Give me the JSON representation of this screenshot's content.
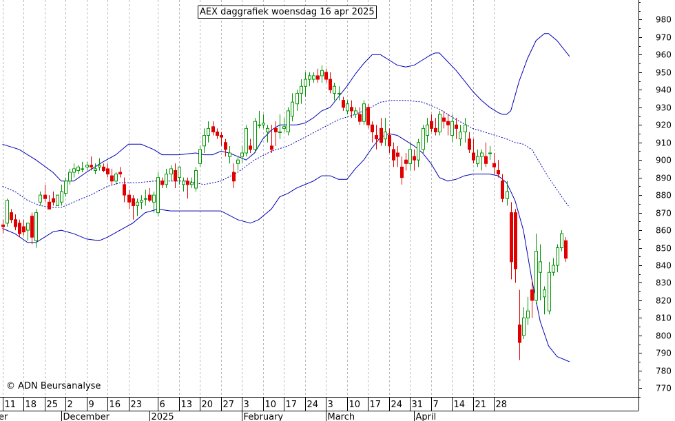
{
  "chart_data": {
    "type": "candlestick",
    "title": "AEX daggrafiek woensdag 16 apr 2025",
    "copyright": "© ADN Beursanalyse",
    "ylim": [
      765,
      990
    ],
    "yticks": [
      770,
      780,
      790,
      800,
      810,
      820,
      830,
      840,
      850,
      860,
      870,
      880,
      890,
      900,
      910,
      920,
      930,
      940,
      950,
      960,
      970,
      980
    ],
    "x_tick_labels": [
      {
        "label": "11",
        "i": 0
      },
      {
        "label": "18",
        "i": 5
      },
      {
        "label": "25",
        "i": 10
      },
      {
        "label": "2",
        "i": 15
      },
      {
        "label": "9",
        "i": 20
      },
      {
        "label": "16",
        "i": 25
      },
      {
        "label": "23",
        "i": 30
      },
      {
        "label": "6",
        "i": 37
      },
      {
        "label": "13",
        "i": 42
      },
      {
        "label": "20",
        "i": 47
      },
      {
        "label": "27",
        "i": 52
      },
      {
        "label": "3",
        "i": 57
      },
      {
        "label": "10",
        "i": 62
      },
      {
        "label": "17",
        "i": 67
      },
      {
        "label": "24",
        "i": 72
      },
      {
        "label": "3",
        "i": 77
      },
      {
        "label": "10",
        "i": 82
      },
      {
        "label": "17",
        "i": 87
      },
      {
        "label": "24",
        "i": 92
      },
      {
        "label": "31",
        "i": 97
      },
      {
        "label": "7",
        "i": 102
      },
      {
        "label": "14",
        "i": 107
      },
      {
        "label": "21",
        "i": 112
      },
      {
        "label": "28",
        "i": 117
      }
    ],
    "month_labels": [
      {
        "label": "er",
        "i": -1
      },
      {
        "label": "December",
        "i": 14
      },
      {
        "label": "2025",
        "i": 35
      },
      {
        "label": "February",
        "i": 57
      },
      {
        "label": "March",
        "i": 77
      },
      {
        "label": "April",
        "i": 98
      }
    ],
    "candles": [
      [
        863,
        866,
        858,
        862
      ],
      [
        864,
        878,
        862,
        877
      ],
      [
        870,
        872,
        864,
        866
      ],
      [
        866,
        869,
        860,
        862
      ],
      [
        864,
        866,
        856,
        858
      ],
      [
        862,
        866,
        857,
        859
      ],
      [
        860,
        864,
        854,
        864
      ],
      [
        868,
        870,
        852,
        856
      ],
      [
        854,
        872,
        850,
        870
      ],
      [
        876,
        882,
        874,
        880
      ],
      [
        880,
        886,
        876,
        878
      ],
      [
        876,
        880,
        872,
        872
      ],
      [
        878,
        882,
        874,
        876
      ],
      [
        874,
        880,
        874,
        880
      ],
      [
        876,
        886,
        874,
        882
      ],
      [
        881,
        890,
        879,
        888
      ],
      [
        888,
        895,
        886,
        893
      ],
      [
        893,
        898,
        890,
        895
      ],
      [
        894,
        897,
        892,
        896
      ],
      [
        895,
        899,
        893,
        895
      ],
      [
        896,
        899,
        894,
        897
      ],
      [
        897,
        902,
        894,
        896
      ],
      [
        894,
        898,
        892,
        895
      ],
      [
        896,
        901,
        894,
        897
      ],
      [
        896,
        898,
        893,
        894
      ],
      [
        895,
        898,
        890,
        892
      ],
      [
        891,
        895,
        886,
        888
      ],
      [
        888,
        893,
        886,
        892
      ],
      [
        893,
        896,
        890,
        892
      ],
      [
        886,
        890,
        876,
        880
      ],
      [
        880,
        883,
        872,
        876
      ],
      [
        878,
        880,
        866,
        874
      ],
      [
        874,
        878,
        868,
        876
      ],
      [
        876,
        880,
        872,
        877
      ],
      [
        878,
        883,
        874,
        878
      ],
      [
        880,
        884,
        876,
        877
      ],
      [
        876,
        882,
        870,
        880
      ],
      [
        870,
        893,
        868,
        890
      ],
      [
        888,
        890,
        884,
        886
      ],
      [
        886,
        895,
        884,
        892
      ],
      [
        892,
        897,
        888,
        895
      ],
      [
        894,
        898,
        884,
        888
      ],
      [
        890,
        896,
        886,
        896
      ],
      [
        886,
        890,
        882,
        888
      ],
      [
        888,
        890,
        878,
        886
      ],
      [
        886,
        890,
        884,
        887
      ],
      [
        884,
        896,
        882,
        894
      ],
      [
        898,
        908,
        896,
        906
      ],
      [
        908,
        918,
        904,
        914
      ],
      [
        914,
        922,
        910,
        918
      ],
      [
        919,
        922,
        914,
        916
      ],
      [
        916,
        918,
        912,
        914
      ],
      [
        914,
        916,
        908,
        913
      ],
      [
        910,
        912,
        902,
        906
      ],
      [
        902,
        908,
        898,
        904
      ],
      [
        893,
        898,
        884,
        888
      ],
      [
        898,
        902,
        894,
        900
      ],
      [
        902,
        908,
        898,
        904
      ],
      [
        904,
        920,
        902,
        918
      ],
      [
        908,
        912,
        904,
        906
      ],
      [
        906,
        924,
        904,
        922
      ],
      [
        920,
        928,
        918,
        920
      ],
      [
        920,
        926,
        918,
        921
      ],
      [
        916,
        920,
        910,
        918
      ],
      [
        908,
        920,
        904,
        906
      ],
      [
        918,
        922,
        908,
        916
      ],
      [
        916,
        926,
        912,
        916
      ],
      [
        918,
        924,
        916,
        919
      ],
      [
        916,
        930,
        914,
        928
      ],
      [
        925,
        938,
        922,
        933
      ],
      [
        932,
        940,
        928,
        938
      ],
      [
        938,
        946,
        932,
        942
      ],
      [
        942,
        950,
        936,
        946
      ],
      [
        946,
        950,
        942,
        948
      ],
      [
        946,
        950,
        944,
        948
      ],
      [
        948,
        952,
        944,
        946
      ],
      [
        948,
        954,
        944,
        951
      ],
      [
        950,
        952,
        944,
        946
      ],
      [
        946,
        950,
        938,
        940
      ],
      [
        938,
        944,
        934,
        942
      ],
      [
        938,
        942,
        934,
        938
      ],
      [
        934,
        936,
        928,
        930
      ],
      [
        928,
        934,
        926,
        932
      ],
      [
        930,
        934,
        924,
        928
      ],
      [
        926,
        930,
        924,
        928
      ],
      [
        926,
        930,
        920,
        922
      ],
      [
        922,
        934,
        920,
        932
      ],
      [
        930,
        932,
        918,
        920
      ],
      [
        920,
        922,
        910,
        916
      ],
      [
        914,
        920,
        906,
        912
      ],
      [
        918,
        924,
        908,
        910
      ],
      [
        912,
        924,
        908,
        916
      ],
      [
        914,
        918,
        904,
        908
      ],
      [
        906,
        910,
        896,
        900
      ],
      [
        904,
        908,
        896,
        902
      ],
      [
        896,
        902,
        886,
        890
      ],
      [
        900,
        904,
        894,
        898
      ],
      [
        898,
        910,
        894,
        906
      ],
      [
        902,
        906,
        894,
        900
      ],
      [
        900,
        912,
        896,
        910
      ],
      [
        906,
        920,
        904,
        918
      ],
      [
        914,
        924,
        910,
        920
      ],
      [
        922,
        926,
        916,
        918
      ],
      [
        918,
        924,
        914,
        916
      ],
      [
        916,
        928,
        914,
        926
      ],
      [
        924,
        928,
        918,
        922
      ],
      [
        922,
        926,
        914,
        920
      ],
      [
        914,
        926,
        910,
        922
      ],
      [
        920,
        924,
        912,
        918
      ],
      [
        912,
        920,
        908,
        916
      ],
      [
        916,
        924,
        910,
        920
      ],
      [
        912,
        916,
        904,
        906
      ],
      [
        904,
        912,
        898,
        900
      ],
      [
        898,
        906,
        896,
        902
      ],
      [
        902,
        906,
        894,
        904
      ],
      [
        902,
        910,
        896,
        898
      ],
      [
        904,
        908,
        900,
        904
      ],
      [
        898,
        904,
        892,
        896
      ],
      [
        894,
        900,
        890,
        892
      ],
      [
        888,
        892,
        876,
        878
      ],
      [
        878,
        888,
        874,
        882
      ],
      [
        870,
        876,
        832,
        842
      ],
      [
        870,
        872,
        830,
        838
      ],
      [
        806,
        826,
        786,
        796
      ],
      [
        800,
        816,
        798,
        810
      ],
      [
        810,
        822,
        806,
        814
      ],
      [
        826,
        832,
        810,
        820
      ],
      [
        820,
        858,
        818,
        848
      ],
      [
        836,
        852,
        820,
        842
      ],
      [
        822,
        828,
        812,
        826
      ],
      [
        814,
        842,
        812,
        836
      ],
      [
        836,
        844,
        834,
        840
      ],
      [
        840,
        852,
        836,
        850
      ],
      [
        850,
        860,
        848,
        858
      ],
      [
        854,
        856,
        842,
        844
      ]
    ],
    "bollinger_upper": [
      [
        0,
        909
      ],
      [
        4,
        906
      ],
      [
        8,
        900
      ],
      [
        12,
        893
      ],
      [
        14,
        888
      ],
      [
        17,
        888
      ],
      [
        20,
        893
      ],
      [
        24,
        899
      ],
      [
        27,
        903
      ],
      [
        30,
        909
      ],
      [
        33,
        909
      ],
      [
        36,
        906
      ],
      [
        38,
        903
      ],
      [
        42,
        903
      ],
      [
        46,
        904
      ],
      [
        48,
        903
      ],
      [
        50,
        903
      ],
      [
        52,
        905
      ],
      [
        54,
        904
      ],
      [
        56,
        902
      ],
      [
        58,
        900
      ],
      [
        60,
        904
      ],
      [
        62,
        912
      ],
      [
        64,
        917
      ],
      [
        66,
        920
      ],
      [
        68,
        920
      ],
      [
        70,
        920
      ],
      [
        72,
        921
      ],
      [
        74,
        924
      ],
      [
        76,
        928
      ],
      [
        78,
        930
      ],
      [
        80,
        936
      ],
      [
        82,
        942
      ],
      [
        84,
        949
      ],
      [
        86,
        955
      ],
      [
        88,
        960
      ],
      [
        90,
        960
      ],
      [
        92,
        957
      ],
      [
        94,
        954
      ],
      [
        96,
        953
      ],
      [
        98,
        954
      ],
      [
        100,
        957
      ],
      [
        102,
        960
      ],
      [
        103,
        961
      ],
      [
        104,
        961
      ],
      [
        106,
        956
      ],
      [
        108,
        951
      ],
      [
        110,
        945
      ],
      [
        112,
        939
      ],
      [
        114,
        934
      ],
      [
        116,
        930
      ],
      [
        118,
        927
      ],
      [
        119,
        926
      ],
      [
        120,
        926
      ],
      [
        121,
        928
      ],
      [
        123,
        945
      ],
      [
        125,
        958
      ],
      [
        127,
        968
      ],
      [
        129,
        972
      ],
      [
        130,
        972
      ],
      [
        132,
        968
      ],
      [
        134,
        962
      ],
      [
        135,
        959
      ]
    ],
    "bollinger_middle": [
      [
        0,
        885
      ],
      [
        3,
        882
      ],
      [
        6,
        877
      ],
      [
        9,
        874
      ],
      [
        12,
        873
      ],
      [
        14,
        873
      ],
      [
        17,
        876
      ],
      [
        21,
        880
      ],
      [
        25,
        885
      ],
      [
        28,
        887
      ],
      [
        32,
        887
      ],
      [
        36,
        888
      ],
      [
        40,
        888
      ],
      [
        44,
        888
      ],
      [
        48,
        886
      ],
      [
        52,
        888
      ],
      [
        56,
        893
      ],
      [
        60,
        900
      ],
      [
        64,
        905
      ],
      [
        68,
        908
      ],
      [
        72,
        913
      ],
      [
        76,
        918
      ],
      [
        80,
        923
      ],
      [
        84,
        926
      ],
      [
        87,
        929
      ],
      [
        90,
        933
      ],
      [
        93,
        934
      ],
      [
        96,
        934
      ],
      [
        100,
        933
      ],
      [
        104,
        929
      ],
      [
        108,
        923
      ],
      [
        112,
        918
      ],
      [
        116,
        915
      ],
      [
        120,
        912
      ],
      [
        122,
        910
      ],
      [
        124,
        909
      ],
      [
        126,
        906
      ],
      [
        128,
        898
      ],
      [
        130,
        890
      ],
      [
        132,
        883
      ],
      [
        134,
        876
      ],
      [
        135,
        873
      ]
    ],
    "bollinger_lower": [
      [
        0,
        861
      ],
      [
        3,
        858
      ],
      [
        6,
        853
      ],
      [
        8,
        853
      ],
      [
        10,
        856
      ],
      [
        12,
        859
      ],
      [
        14,
        860
      ],
      [
        17,
        858
      ],
      [
        20,
        855
      ],
      [
        23,
        854
      ],
      [
        25,
        856
      ],
      [
        28,
        860
      ],
      [
        31,
        864
      ],
      [
        34,
        870
      ],
      [
        37,
        872
      ],
      [
        40,
        871
      ],
      [
        44,
        871
      ],
      [
        48,
        871
      ],
      [
        52,
        871
      ],
      [
        56,
        866
      ],
      [
        59,
        864
      ],
      [
        61,
        866
      ],
      [
        64,
        872
      ],
      [
        66,
        879
      ],
      [
        68,
        881
      ],
      [
        70,
        884
      ],
      [
        72,
        886
      ],
      [
        74,
        888
      ],
      [
        76,
        891
      ],
      [
        78,
        891
      ],
      [
        80,
        889
      ],
      [
        82,
        889
      ],
      [
        84,
        895
      ],
      [
        86,
        900
      ],
      [
        88,
        907
      ],
      [
        90,
        913
      ],
      [
        92,
        915
      ],
      [
        94,
        914
      ],
      [
        96,
        911
      ],
      [
        98,
        908
      ],
      [
        100,
        904
      ],
      [
        102,
        898
      ],
      [
        104,
        890
      ],
      [
        106,
        888
      ],
      [
        108,
        889
      ],
      [
        110,
        891
      ],
      [
        112,
        892
      ],
      [
        114,
        892
      ],
      [
        116,
        892
      ],
      [
        118,
        891
      ],
      [
        120,
        887
      ],
      [
        122,
        877
      ],
      [
        124,
        860
      ],
      [
        126,
        832
      ],
      [
        128,
        808
      ],
      [
        130,
        794
      ],
      [
        132,
        788
      ],
      [
        134,
        786
      ],
      [
        135,
        785
      ]
    ]
  }
}
